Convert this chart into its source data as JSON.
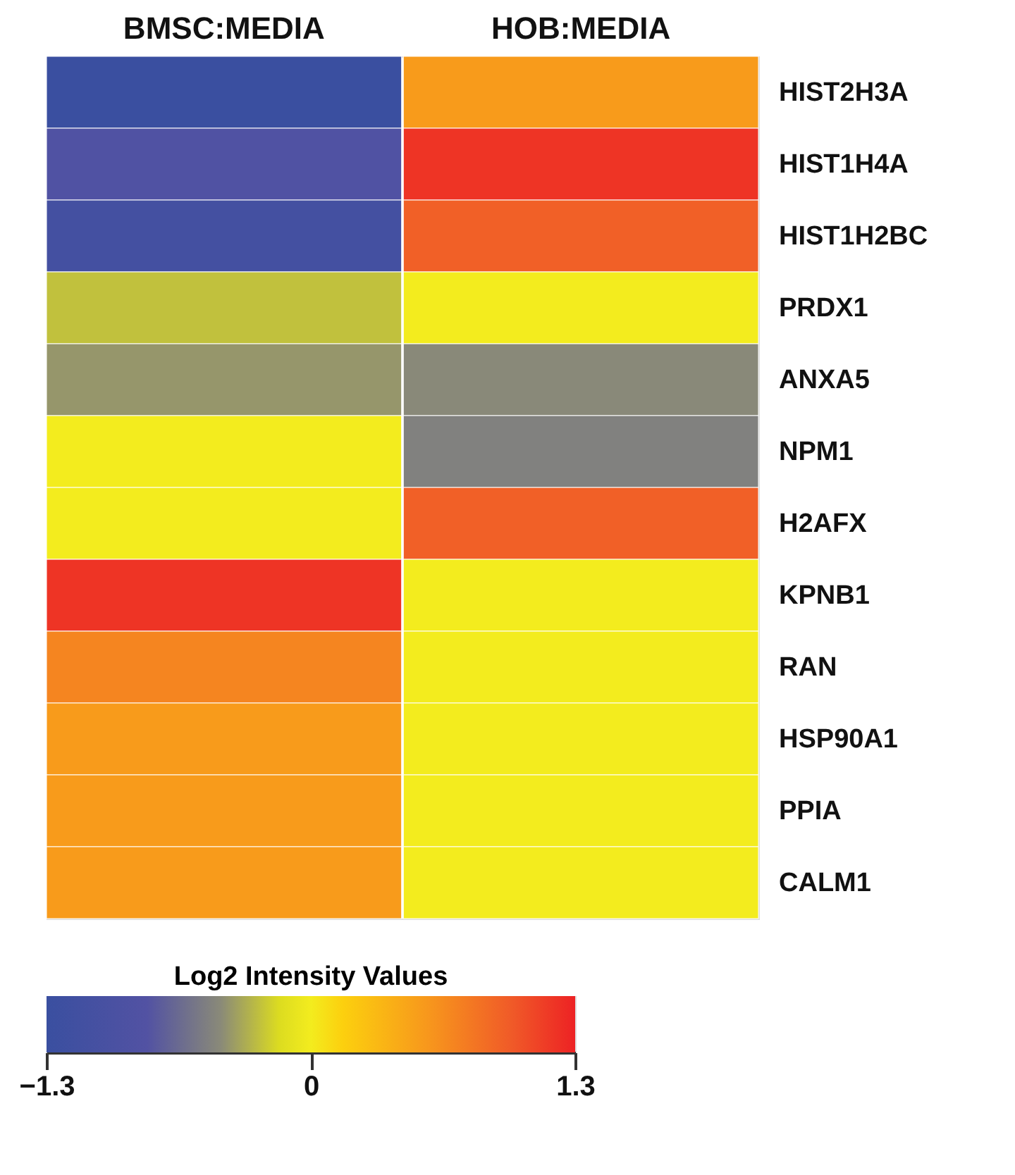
{
  "chart_data": {
    "type": "heatmap",
    "categories": [
      "BMSC:MEDIA",
      "HOB:MEDIA"
    ],
    "y_categories": [
      "HIST2H3A",
      "HIST1H4A",
      "HIST1H2BC",
      "PRDX1",
      "ANXA5",
      "NPM1",
      "H2AFX",
      "KPNB1",
      "RAN",
      "HSP90A1",
      "PPIA",
      "CALM1"
    ],
    "cells": [
      [
        -1.3,
        0.55
      ],
      [
        -0.85,
        1.2
      ],
      [
        -1.1,
        0.95
      ],
      [
        -0.25,
        0
      ],
      [
        -0.4,
        -0.45
      ],
      [
        0,
        -0.5
      ],
      [
        0,
        0.95
      ],
      [
        1.2,
        0
      ],
      [
        0.7,
        0
      ],
      [
        0.55,
        0
      ],
      [
        0.55,
        0
      ],
      [
        0.55,
        0
      ]
    ],
    "clabel": "Log2 Intensity Values",
    "clim": [
      -1.3,
      1.3
    ],
    "cticks": [
      -1.3,
      0,
      1.3
    ]
  }
}
